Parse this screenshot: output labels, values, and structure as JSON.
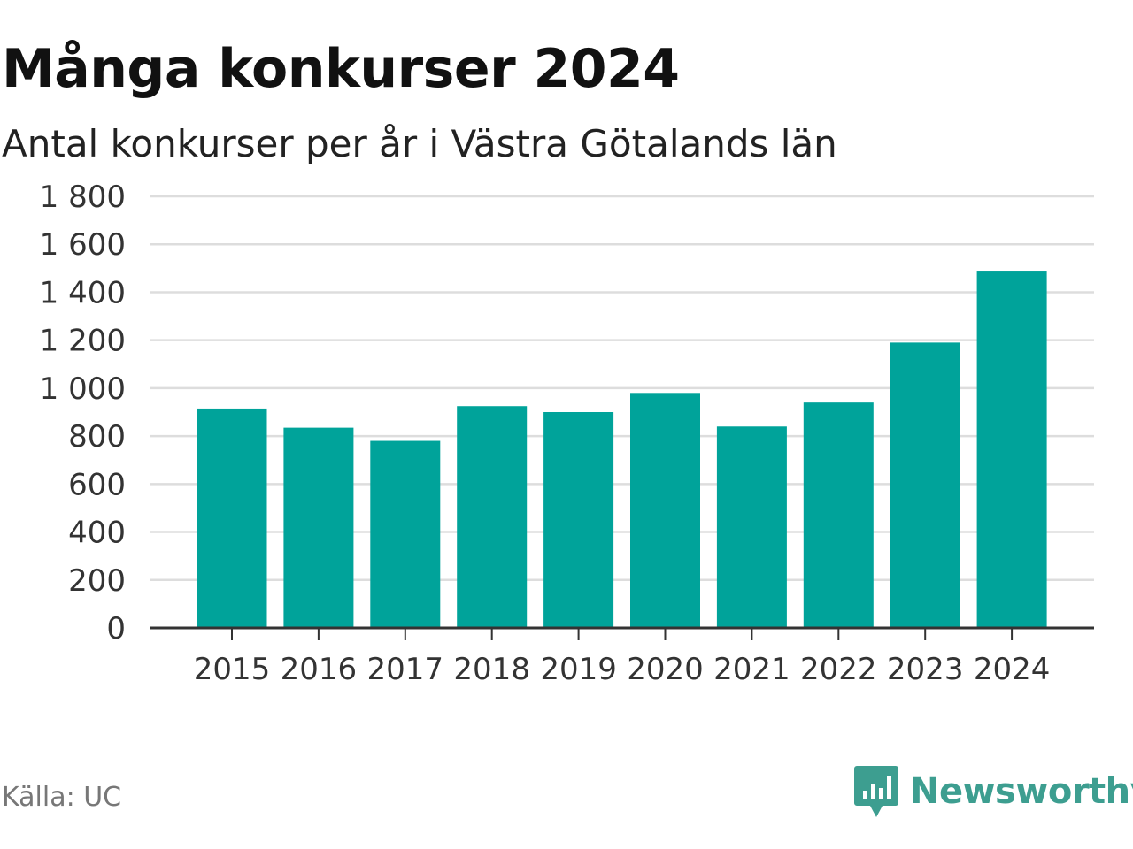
{
  "title": "Många konkurser 2024",
  "subtitle": "Antal konkurser per år i Västra Götalands län",
  "source": "Källa: UC",
  "brand": {
    "name": "Newsworthy",
    "icon": "newsworthy-logo-icon",
    "color": "#3d9e90"
  },
  "colors": {
    "bar": "#00a39a",
    "grid": "#dddddd",
    "axis": "#333333"
  },
  "chart_data": {
    "type": "bar",
    "title": "Många konkurser 2024",
    "subtitle": "Antal konkurser per år i Västra Götalands län",
    "xlabel": "",
    "ylabel": "",
    "categories": [
      "2015",
      "2016",
      "2017",
      "2018",
      "2019",
      "2020",
      "2021",
      "2022",
      "2023",
      "2024"
    ],
    "values": [
      915,
      835,
      780,
      925,
      900,
      980,
      840,
      940,
      1190,
      1490
    ],
    "ylim": [
      0,
      1800
    ],
    "yticks": [
      0,
      200,
      400,
      600,
      800,
      1000,
      1200,
      1400,
      1600,
      1800
    ],
    "ytick_labels": [
      "0",
      "200",
      "400",
      "600",
      "800",
      "1 000",
      "1 200",
      "1 400",
      "1 600",
      "1 800"
    ],
    "grid": true,
    "legend": "none"
  }
}
